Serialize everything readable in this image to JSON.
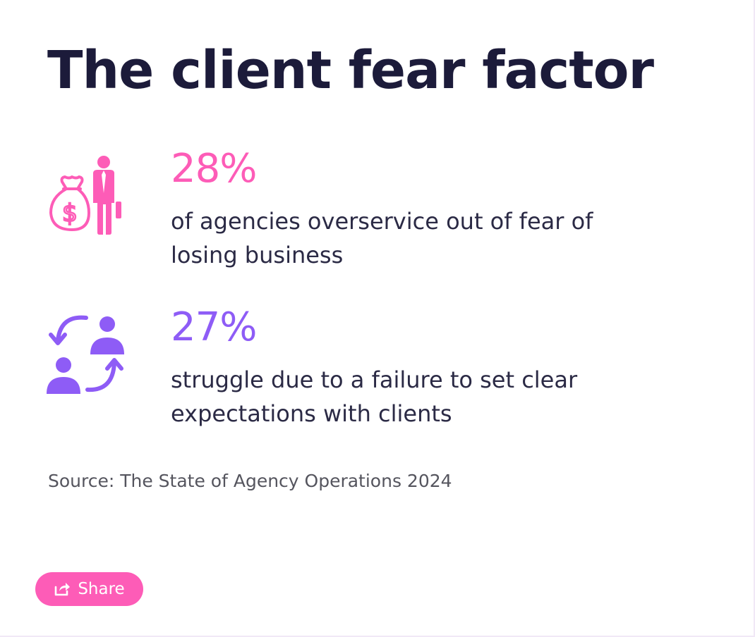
{
  "title": "The client fear factor",
  "stats": [
    {
      "icon": "money-bag-businessman-icon",
      "value": "28%",
      "text": "of agencies overservice out of fear of losing business",
      "color": "#fd5cb7"
    },
    {
      "icon": "people-exchange-icon",
      "value": "27%",
      "text": "struggle due to a failure to set clear expectations with clients",
      "color": "#8e5cf6"
    }
  ],
  "source": "Source: The State of Agency Operations 2024",
  "share": {
    "label": "Share",
    "icon": "share-icon",
    "color": "#fd5cb7"
  },
  "colors": {
    "title": "#1c1b3a",
    "body_text": "#2b2a45",
    "source_text": "#55555e"
  }
}
